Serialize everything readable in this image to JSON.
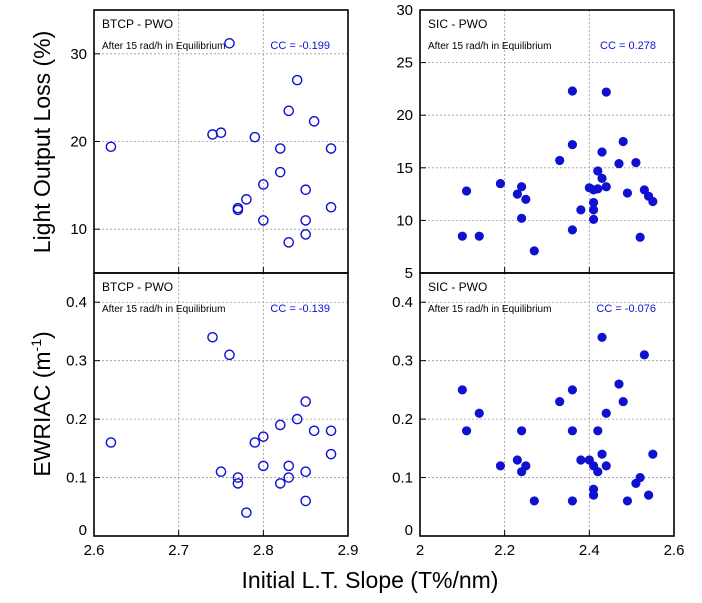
{
  "figure": {
    "xlabel": "Initial L.T. Slope (T%/nm)",
    "ylabel_top": "Light Output Loss (%)",
    "ylabel_bottom_main": "EWRIAC (m",
    "ylabel_bottom_sup": "-1",
    "ylabel_bottom_end": ")",
    "marker_color": "#1010d0"
  },
  "chart_data": [
    {
      "type": "scatter",
      "title": "BTCP - PWO",
      "annotation": "After 15 rad/h in Equilibrium",
      "cc_text": "CC = -0.199",
      "marker": "open-circle",
      "xlim": [
        2.6,
        2.9
      ],
      "ylim": [
        5,
        35
      ],
      "xticks": [],
      "yticks": [
        10,
        20,
        30
      ],
      "grid": true,
      "points": [
        [
          2.62,
          19.4
        ],
        [
          2.74,
          20.8
        ],
        [
          2.75,
          21.0
        ],
        [
          2.76,
          31.2
        ],
        [
          2.77,
          12.2
        ],
        [
          2.77,
          12.4
        ],
        [
          2.78,
          13.4
        ],
        [
          2.79,
          20.5
        ],
        [
          2.8,
          15.1
        ],
        [
          2.8,
          11.0
        ],
        [
          2.82,
          19.2
        ],
        [
          2.82,
          16.5
        ],
        [
          2.83,
          23.5
        ],
        [
          2.83,
          8.5
        ],
        [
          2.84,
          27.0
        ],
        [
          2.85,
          14.5
        ],
        [
          2.85,
          11.0
        ],
        [
          2.85,
          9.4
        ],
        [
          2.86,
          22.3
        ],
        [
          2.88,
          19.2
        ],
        [
          2.88,
          12.5
        ]
      ]
    },
    {
      "type": "scatter",
      "title": "SIC - PWO",
      "annotation": "After 15 rad/h in Equilibrium",
      "cc_text": "CC = 0.278",
      "marker": "filled-circle",
      "xlim": [
        2.0,
        2.6
      ],
      "ylim": [
        5,
        30
      ],
      "xticks": [],
      "yticks": [
        5,
        10,
        15,
        20,
        25,
        30
      ],
      "grid": true,
      "points": [
        [
          2.1,
          8.5
        ],
        [
          2.11,
          12.8
        ],
        [
          2.14,
          8.5
        ],
        [
          2.19,
          13.5
        ],
        [
          2.23,
          12.5
        ],
        [
          2.24,
          13.2
        ],
        [
          2.24,
          10.2
        ],
        [
          2.25,
          12.0
        ],
        [
          2.27,
          7.1
        ],
        [
          2.33,
          15.7
        ],
        [
          2.36,
          22.3
        ],
        [
          2.36,
          17.2
        ],
        [
          2.36,
          9.1
        ],
        [
          2.38,
          11.0
        ],
        [
          2.4,
          13.1
        ],
        [
          2.41,
          12.9
        ],
        [
          2.41,
          11.7
        ],
        [
          2.41,
          11.0
        ],
        [
          2.41,
          10.1
        ],
        [
          2.42,
          14.7
        ],
        [
          2.42,
          13.0
        ],
        [
          2.43,
          16.5
        ],
        [
          2.43,
          14.0
        ],
        [
          2.44,
          22.2
        ],
        [
          2.44,
          13.2
        ],
        [
          2.47,
          15.4
        ],
        [
          2.48,
          17.5
        ],
        [
          2.49,
          12.6
        ],
        [
          2.51,
          15.5
        ],
        [
          2.52,
          8.4
        ],
        [
          2.53,
          12.9
        ],
        [
          2.54,
          12.3
        ],
        [
          2.55,
          11.8
        ]
      ]
    },
    {
      "type": "scatter",
      "title": "BTCP - PWO",
      "annotation": "After 15 rad/h in Equilibrium",
      "cc_text": "CC = -0.139",
      "marker": "open-circle",
      "xlim": [
        2.6,
        2.9
      ],
      "ylim": [
        0,
        0.45
      ],
      "xticks": [
        "2.6",
        "2.7",
        "2.8",
        "2.9"
      ],
      "yticks": [
        0,
        0.1,
        0.2,
        0.3,
        0.4
      ],
      "ytick_labels": [
        "0",
        "0.1",
        "0.2",
        "0.3",
        "0.4"
      ],
      "grid": true,
      "points": [
        [
          2.62,
          0.16
        ],
        [
          2.74,
          0.34
        ],
        [
          2.75,
          0.11
        ],
        [
          2.76,
          0.31
        ],
        [
          2.77,
          0.1
        ],
        [
          2.77,
          0.09
        ],
        [
          2.78,
          0.04
        ],
        [
          2.79,
          0.16
        ],
        [
          2.8,
          0.17
        ],
        [
          2.8,
          0.12
        ],
        [
          2.82,
          0.19
        ],
        [
          2.82,
          0.09
        ],
        [
          2.83,
          0.12
        ],
        [
          2.83,
          0.1
        ],
        [
          2.84,
          0.2
        ],
        [
          2.85,
          0.23
        ],
        [
          2.85,
          0.11
        ],
        [
          2.85,
          0.06
        ],
        [
          2.86,
          0.18
        ],
        [
          2.88,
          0.18
        ],
        [
          2.88,
          0.14
        ]
      ]
    },
    {
      "type": "scatter",
      "title": "SIC - PWO",
      "annotation": "After 15 rad/h in Equilibrium",
      "cc_text": "CC = -0.076",
      "marker": "filled-circle",
      "xlim": [
        2.0,
        2.6
      ],
      "ylim": [
        0,
        0.45
      ],
      "xticks": [
        "2",
        "2.2",
        "2.4",
        "2.6"
      ],
      "yticks": [
        0,
        0.1,
        0.2,
        0.3,
        0.4
      ],
      "ytick_labels": [
        "0",
        "0.1",
        "0.2",
        "0.3",
        "0.4"
      ],
      "grid": true,
      "points": [
        [
          2.1,
          0.25
        ],
        [
          2.11,
          0.18
        ],
        [
          2.14,
          0.21
        ],
        [
          2.19,
          0.12
        ],
        [
          2.23,
          0.13
        ],
        [
          2.24,
          0.18
        ],
        [
          2.24,
          0.11
        ],
        [
          2.25,
          0.12
        ],
        [
          2.27,
          0.06
        ],
        [
          2.33,
          0.23
        ],
        [
          2.36,
          0.25
        ],
        [
          2.36,
          0.18
        ],
        [
          2.36,
          0.06
        ],
        [
          2.38,
          0.13
        ],
        [
          2.4,
          0.13
        ],
        [
          2.41,
          0.12
        ],
        [
          2.41,
          0.08
        ],
        [
          2.41,
          0.07
        ],
        [
          2.42,
          0.18
        ],
        [
          2.42,
          0.11
        ],
        [
          2.43,
          0.34
        ],
        [
          2.43,
          0.14
        ],
        [
          2.44,
          0.21
        ],
        [
          2.44,
          0.12
        ],
        [
          2.47,
          0.26
        ],
        [
          2.48,
          0.23
        ],
        [
          2.49,
          0.06
        ],
        [
          2.51,
          0.09
        ],
        [
          2.52,
          0.1
        ],
        [
          2.53,
          0.31
        ],
        [
          2.54,
          0.07
        ],
        [
          2.55,
          0.14
        ]
      ]
    }
  ]
}
